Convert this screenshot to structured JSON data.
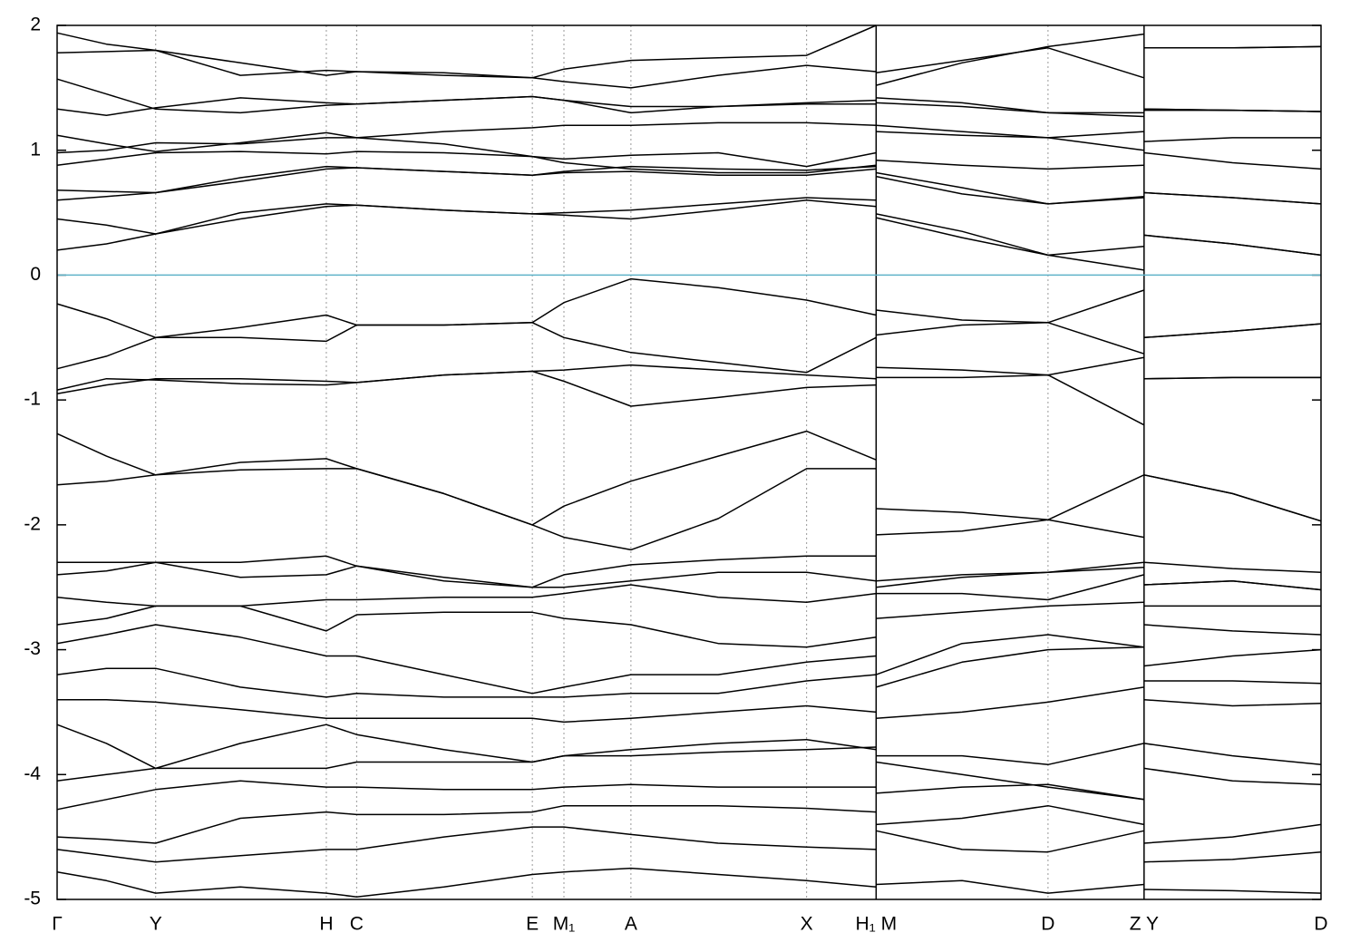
{
  "chart_data": {
    "type": "line",
    "xlim": [
      0,
      10
    ],
    "ylim": [
      -5,
      2
    ],
    "yticks": [
      -5,
      -4,
      -3,
      -2,
      -1,
      0,
      1,
      2
    ],
    "xticks": [
      {
        "value": 0,
        "label": "Γ"
      },
      {
        "value": 0.78,
        "label": "Y"
      },
      {
        "value": 2.13,
        "label": "H"
      },
      {
        "value": 2.37,
        "label": "C"
      },
      {
        "value": 3.76,
        "label": "E"
      },
      {
        "value": 4.01,
        "label": "M₁"
      },
      {
        "value": 4.54,
        "label": "A"
      },
      {
        "value": 5.93,
        "label": "X"
      },
      {
        "value": 6.48,
        "label": "H₁ M",
        "separator": true
      },
      {
        "value": 7.84,
        "label": "D"
      },
      {
        "value": 8.6,
        "label": "Z Y",
        "separator": true
      },
      {
        "value": 10,
        "label": "D"
      }
    ],
    "grid": true,
    "line_color": "#000000",
    "zero_line_color": "#5fb3c9",
    "x": [
      0,
      0.39,
      0.78,
      1.45,
      2.13,
      2.37,
      3.06,
      3.76,
      4.01,
      4.54,
      5.23,
      5.93,
      6.48,
      null,
      6.48,
      7.16,
      7.84,
      8.6,
      null,
      8.6,
      9.3,
      10
    ],
    "series": [
      {
        "values": [
          0.2,
          0.25,
          0.33,
          0.45,
          0.55,
          0.56,
          0.52,
          0.49,
          0.48,
          0.45,
          0.52,
          0.6,
          0.55,
          null,
          0.49,
          0.35,
          0.16,
          0.04,
          null,
          0.32,
          0.25,
          0.16
        ]
      },
      {
        "values": [
          0.45,
          0.4,
          0.33,
          0.5,
          0.57,
          0.56,
          0.52,
          0.49,
          0.5,
          0.52,
          0.57,
          0.62,
          0.6,
          null,
          0.46,
          0.3,
          0.16,
          0.23,
          null,
          0.32,
          0.25,
          0.16
        ]
      },
      {
        "values": [
          0.6,
          0.63,
          0.66,
          0.75,
          0.85,
          0.86,
          0.83,
          0.8,
          0.82,
          0.83,
          0.8,
          0.8,
          0.85,
          null,
          0.79,
          0.65,
          0.57,
          0.63,
          null,
          0.66,
          0.62,
          0.57
        ]
      },
      {
        "values": [
          0.68,
          0.67,
          0.66,
          0.78,
          0.87,
          0.86,
          0.83,
          0.8,
          0.83,
          0.87,
          0.85,
          0.84,
          0.87,
          null,
          0.82,
          0.7,
          0.57,
          0.62,
          null,
          0.66,
          0.62,
          0.57
        ]
      },
      {
        "values": [
          0.88,
          0.93,
          0.98,
          0.99,
          0.97,
          0.99,
          0.98,
          0.95,
          0.9,
          0.85,
          0.82,
          0.82,
          0.88,
          null,
          0.92,
          0.88,
          0.85,
          0.88,
          null,
          0.98,
          0.9,
          0.85
        ]
      },
      {
        "values": [
          0.98,
          1.0,
          1.06,
          1.05,
          1.1,
          1.1,
          1.15,
          1.18,
          1.2,
          1.2,
          1.22,
          1.22,
          1.2,
          null,
          1.15,
          1.12,
          1.1,
          1.0,
          null,
          1.07,
          1.1,
          1.1
        ]
      },
      {
        "values": [
          1.12,
          1.05,
          0.99,
          1.06,
          1.14,
          1.1,
          1.05,
          0.95,
          0.93,
          0.96,
          0.98,
          0.87,
          0.98,
          null,
          1.2,
          1.15,
          1.1,
          1.15,
          null,
          1.32,
          1.32,
          1.31
        ]
      },
      {
        "values": [
          1.33,
          1.28,
          1.34,
          1.42,
          1.38,
          1.37,
          1.4,
          1.43,
          1.4,
          1.3,
          1.35,
          1.37,
          1.37,
          null,
          1.42,
          1.38,
          1.3,
          1.27,
          null,
          1.33,
          1.32,
          1.31
        ]
      },
      {
        "values": [
          1.57,
          1.45,
          1.33,
          1.3,
          1.36,
          1.37,
          1.4,
          1.43,
          1.4,
          1.35,
          1.35,
          1.38,
          1.4,
          null,
          1.38,
          1.35,
          1.3,
          1.3,
          null,
          1.33,
          1.32,
          1.31
        ]
      },
      {
        "values": [
          1.78,
          1.79,
          1.8,
          1.7,
          1.6,
          1.63,
          1.6,
          1.58,
          1.55,
          1.5,
          1.6,
          1.68,
          1.63,
          null,
          1.62,
          1.72,
          1.82,
          1.58,
          null,
          1.82,
          1.82,
          1.83
        ]
      },
      {
        "values": [
          1.94,
          1.85,
          1.8,
          1.6,
          1.64,
          1.63,
          1.62,
          1.58,
          1.65,
          1.72,
          1.74,
          1.76,
          2.0,
          null,
          1.52,
          1.7,
          1.83,
          1.93,
          null,
          1.82,
          1.82,
          1.83
        ]
      },
      {
        "values": [
          -0.23,
          -0.35,
          -0.5,
          -0.42,
          -0.32,
          -0.4,
          -0.4,
          -0.38,
          -0.22,
          -0.03,
          -0.1,
          -0.2,
          -0.32,
          null,
          -0.28,
          -0.36,
          -0.38,
          -0.12,
          null,
          -0.5,
          -0.45,
          -0.39
        ]
      },
      {
        "values": [
          -0.75,
          -0.65,
          -0.5,
          -0.5,
          -0.53,
          -0.4,
          -0.4,
          -0.38,
          -0.5,
          -0.62,
          -0.7,
          -0.78,
          -0.5,
          null,
          -0.48,
          -0.4,
          -0.38,
          -0.63,
          null,
          -0.5,
          -0.45,
          -0.39
        ]
      },
      {
        "values": [
          -0.92,
          -0.83,
          -0.84,
          -0.87,
          -0.88,
          -0.86,
          -0.8,
          -0.77,
          -0.76,
          -0.72,
          -0.76,
          -0.8,
          -0.83,
          null,
          -0.74,
          -0.76,
          -0.8,
          -0.66,
          null,
          -0.83,
          -0.82,
          -0.82
        ]
      },
      {
        "values": [
          -0.95,
          -0.88,
          -0.83,
          -0.83,
          -0.85,
          -0.86,
          -0.8,
          -0.77,
          -0.85,
          -1.05,
          -0.98,
          -0.9,
          -0.88,
          null,
          -0.82,
          -0.82,
          -0.8,
          -1.2,
          null,
          -0.83,
          -0.82,
          -0.82
        ]
      },
      {
        "values": [
          -1.27,
          -1.45,
          -1.6,
          -1.5,
          -1.47,
          -1.55,
          -1.75,
          -2.0,
          -1.85,
          -1.65,
          -1.45,
          -1.25,
          -1.48,
          null,
          -1.87,
          -1.9,
          -1.96,
          -1.6,
          null,
          -1.6,
          -1.75,
          -1.97
        ]
      },
      {
        "values": [
          -1.68,
          -1.65,
          -1.6,
          -1.56,
          -1.55,
          -1.55,
          -1.75,
          -2.0,
          -2.1,
          -2.2,
          -1.95,
          -1.55,
          -1.55,
          null,
          -2.08,
          -2.05,
          -1.96,
          -2.1,
          null,
          -1.6,
          -1.75,
          -1.97
        ]
      },
      {
        "values": [
          -2.3,
          -2.3,
          -2.3,
          -2.3,
          -2.25,
          -2.33,
          -2.42,
          -2.5,
          -2.4,
          -2.32,
          -2.28,
          -2.25,
          -2.25,
          null,
          -2.45,
          -2.4,
          -2.38,
          -2.3,
          null,
          -2.3,
          -2.35,
          -2.38
        ]
      },
      {
        "values": [
          -2.4,
          -2.37,
          -2.3,
          -2.42,
          -2.4,
          -2.33,
          -2.45,
          -2.5,
          -2.5,
          -2.45,
          -2.38,
          -2.38,
          -2.45,
          null,
          -2.5,
          -2.42,
          -2.38,
          -2.34,
          null,
          -2.48,
          -2.45,
          -2.52
        ]
      },
      {
        "values": [
          -2.58,
          -2.62,
          -2.65,
          -2.65,
          -2.6,
          -2.6,
          -2.58,
          -2.58,
          -2.55,
          -2.48,
          -2.58,
          -2.62,
          -2.55,
          null,
          -2.55,
          -2.55,
          -2.6,
          -2.4,
          null,
          -2.48,
          -2.45,
          -2.52
        ]
      },
      {
        "values": [
          -2.8,
          -2.75,
          -2.65,
          -2.65,
          -2.85,
          -2.72,
          -2.7,
          -2.7,
          -2.75,
          -2.8,
          -2.95,
          -2.98,
          -2.9,
          null,
          -2.75,
          -2.7,
          -2.65,
          -2.62,
          null,
          -2.65,
          -2.65,
          -2.65
        ]
      },
      {
        "values": [
          -2.95,
          -2.88,
          -2.8,
          -2.9,
          -3.05,
          -3.05,
          -3.2,
          -3.35,
          -3.3,
          -3.2,
          -3.2,
          -3.1,
          -3.05,
          null,
          -3.2,
          -2.95,
          -2.88,
          -2.98,
          null,
          -2.8,
          -2.85,
          -2.88
        ]
      },
      {
        "values": [
          -3.2,
          -3.15,
          -3.15,
          -3.3,
          -3.38,
          -3.35,
          -3.38,
          -3.38,
          -3.38,
          -3.35,
          -3.35,
          -3.25,
          -3.2,
          null,
          -3.3,
          -3.1,
          -3.0,
          -2.98,
          null,
          -3.13,
          -3.05,
          -3.0
        ]
      },
      {
        "values": [
          -3.4,
          -3.4,
          -3.42,
          -3.48,
          -3.55,
          -3.55,
          -3.55,
          -3.55,
          -3.58,
          -3.55,
          -3.5,
          -3.45,
          -3.5,
          null,
          -3.55,
          -3.5,
          -3.42,
          -3.3,
          null,
          -3.25,
          -3.25,
          -3.27
        ]
      },
      {
        "values": [
          -3.6,
          -3.75,
          -3.95,
          -3.75,
          -3.6,
          -3.68,
          -3.8,
          -3.9,
          -3.85,
          -3.8,
          -3.75,
          -3.72,
          -3.8,
          null,
          -3.85,
          -3.85,
          -3.92,
          -3.75,
          null,
          -3.4,
          -3.45,
          -3.43
        ]
      },
      {
        "values": [
          -4.05,
          -4.0,
          -3.95,
          -3.95,
          -3.95,
          -3.9,
          -3.9,
          -3.9,
          -3.85,
          -3.85,
          -3.82,
          -3.8,
          -3.78,
          null,
          -3.9,
          -4.0,
          -4.1,
          -4.2,
          null,
          -3.75,
          -3.85,
          -3.92
        ]
      },
      {
        "values": [
          -4.28,
          -4.2,
          -4.12,
          -4.05,
          -4.1,
          -4.1,
          -4.12,
          -4.12,
          -4.1,
          -4.08,
          -4.1,
          -4.1,
          -4.1,
          null,
          -4.15,
          -4.1,
          -4.08,
          -4.2,
          null,
          -3.95,
          -4.05,
          -4.08
        ]
      },
      {
        "values": [
          -4.5,
          -4.52,
          -4.55,
          -4.35,
          -4.3,
          -4.32,
          -4.32,
          -4.3,
          -4.25,
          -4.25,
          -4.25,
          -4.27,
          -4.3,
          null,
          -4.4,
          -4.35,
          -4.25,
          -4.4,
          null,
          -4.55,
          -4.5,
          -4.4
        ]
      },
      {
        "values": [
          -4.6,
          -4.65,
          -4.7,
          -4.65,
          -4.6,
          -4.6,
          -4.5,
          -4.42,
          -4.42,
          -4.48,
          -4.55,
          -4.58,
          -4.6,
          null,
          -4.45,
          -4.6,
          -4.62,
          -4.45,
          null,
          -4.7,
          -4.68,
          -4.62
        ]
      },
      {
        "values": [
          -4.78,
          -4.85,
          -4.95,
          -4.9,
          -4.95,
          -4.98,
          -4.9,
          -4.8,
          -4.78,
          -4.75,
          -4.8,
          -4.85,
          -4.9,
          null,
          -4.88,
          -4.85,
          -4.95,
          -4.88,
          null,
          -4.92,
          -4.93,
          -4.95
        ]
      }
    ]
  }
}
